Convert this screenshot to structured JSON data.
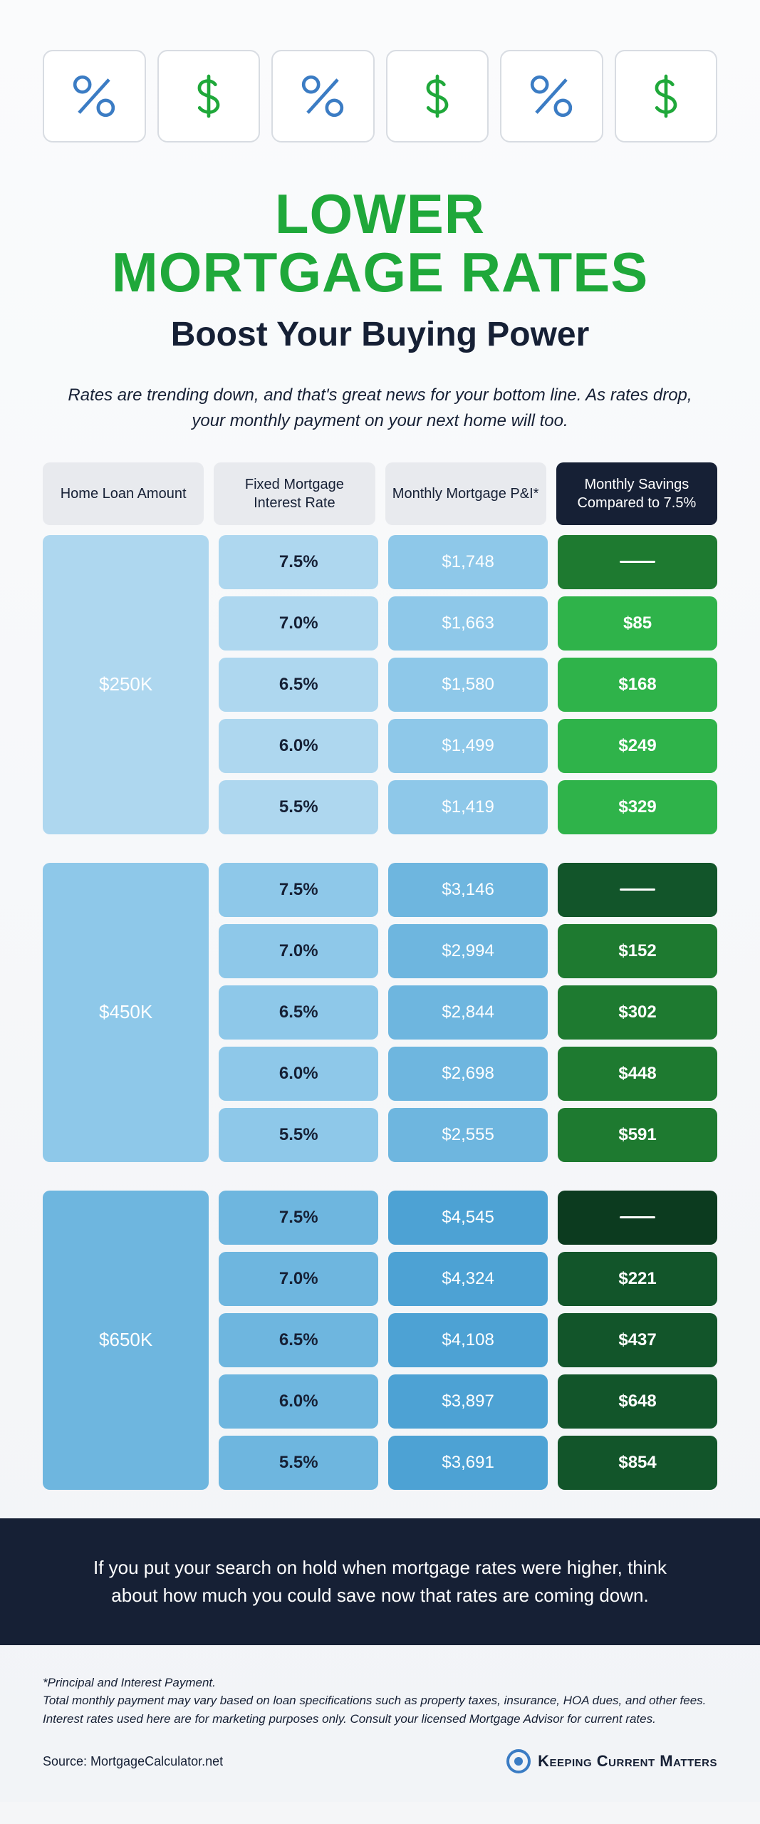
{
  "title": {
    "line1": "LOWER",
    "line2": "MORTGAGE RATES"
  },
  "subtitle": "Boost Your Buying Power",
  "intro": "Rates are trending down, and that's great news for your bottom line. As rates drop, your monthly payment on your next home will too.",
  "headers": {
    "loan": "Home Loan Amount",
    "rate": "Fixed Mortgage Interest Rate",
    "pi": "Monthly Mortgage P&I*",
    "savings": "Monthly Savings Compared to 7.5%"
  },
  "colors": {
    "green_title": "#1fa83a",
    "dark": "#162035",
    "header_light_bg": "#e8eaee",
    "header_dark_bg": "#162035",
    "icon_blue": "#3b7cc4",
    "icon_green": "#1fa83a",
    "icon_border": "#d8dce2"
  },
  "groups": [
    {
      "loan": "$250K",
      "loan_bg": "#aed7ef",
      "rate_bg": "#aed7ef",
      "pi_bg": "#8ec8e9",
      "pi_text": "#ffffff",
      "savings_bgs": [
        "#1e7a30",
        "#2fb34a",
        "#2fb34a",
        "#2fb34a",
        "#2fb34a"
      ],
      "rows": [
        {
          "rate": "7.5%",
          "pi": "$1,748",
          "savings": ""
        },
        {
          "rate": "7.0%",
          "pi": "$1,663",
          "savings": "$85"
        },
        {
          "rate": "6.5%",
          "pi": "$1,580",
          "savings": "$168"
        },
        {
          "rate": "6.0%",
          "pi": "$1,499",
          "savings": "$249"
        },
        {
          "rate": "5.5%",
          "pi": "$1,419",
          "savings": "$329"
        }
      ]
    },
    {
      "loan": "$450K",
      "loan_bg": "#8ec8e9",
      "rate_bg": "#8ec8e9",
      "pi_bg": "#6eb6df",
      "pi_text": "#ffffff",
      "savings_bgs": [
        "#12552a",
        "#1e7a30",
        "#1e7a30",
        "#1e7a30",
        "#1e7a30"
      ],
      "rows": [
        {
          "rate": "7.5%",
          "pi": "$3,146",
          "savings": ""
        },
        {
          "rate": "7.0%",
          "pi": "$2,994",
          "savings": "$152"
        },
        {
          "rate": "6.5%",
          "pi": "$2,844",
          "savings": "$302"
        },
        {
          "rate": "6.0%",
          "pi": "$2,698",
          "savings": "$448"
        },
        {
          "rate": "5.5%",
          "pi": "$2,555",
          "savings": "$591"
        }
      ]
    },
    {
      "loan": "$650K",
      "loan_bg": "#6eb6df",
      "rate_bg": "#6eb6df",
      "pi_bg": "#4da2d4",
      "pi_text": "#ffffff",
      "savings_bgs": [
        "#0c3b1f",
        "#12552a",
        "#12552a",
        "#12552a",
        "#12552a"
      ],
      "rows": [
        {
          "rate": "7.5%",
          "pi": "$4,545",
          "savings": ""
        },
        {
          "rate": "7.0%",
          "pi": "$4,324",
          "savings": "$221"
        },
        {
          "rate": "6.5%",
          "pi": "$4,108",
          "savings": "$437"
        },
        {
          "rate": "6.0%",
          "pi": "$3,897",
          "savings": "$648"
        },
        {
          "rate": "5.5%",
          "pi": "$3,691",
          "savings": "$854"
        }
      ]
    }
  ],
  "callout": "If you put your search on hold when mortgage rates were higher, think about how much you could save now that rates are coming down.",
  "footnote": "*Principal and Interest Payment.\nTotal monthly payment may vary based on loan specifications such as property taxes, insurance, HOA dues, and other fees. Interest rates used here are for marketing purposes only. Consult your licensed Mortgage Advisor for current rates.",
  "source": "Source: MortgageCalculator.net",
  "brand": "Keeping Current Matters"
}
